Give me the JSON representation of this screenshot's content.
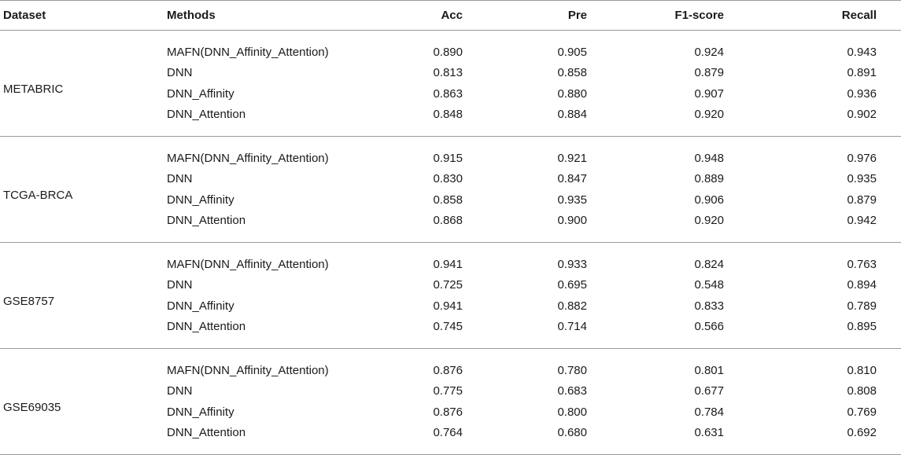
{
  "table": {
    "headers": {
      "dataset": "Dataset",
      "methods": "Methods",
      "acc": "Acc",
      "pre": "Pre",
      "f1": "F1-score",
      "recall": "Recall"
    },
    "groups": [
      {
        "dataset": "METABRIC",
        "rows": [
          {
            "method": "MAFN(DNN_Affinity_Attention)",
            "acc": "0.890",
            "pre": "0.905",
            "f1": "0.924",
            "recall": "0.943"
          },
          {
            "method": "DNN",
            "acc": "0.813",
            "pre": "0.858",
            "f1": "0.879",
            "recall": "0.891"
          },
          {
            "method": "DNN_Affinity",
            "acc": "0.863",
            "pre": "0.880",
            "f1": "0.907",
            "recall": "0.936"
          },
          {
            "method": "DNN_Attention",
            "acc": "0.848",
            "pre": "0.884",
            "f1": "0.920",
            "recall": "0.902"
          }
        ]
      },
      {
        "dataset": "TCGA-BRCA",
        "rows": [
          {
            "method": "MAFN(DNN_Affinity_Attention)",
            "acc": "0.915",
            "pre": "0.921",
            "f1": "0.948",
            "recall": "0.976"
          },
          {
            "method": "DNN",
            "acc": "0.830",
            "pre": "0.847",
            "f1": "0.889",
            "recall": "0.935"
          },
          {
            "method": "DNN_Affinity",
            "acc": "0.858",
            "pre": "0.935",
            "f1": "0.906",
            "recall": "0.879"
          },
          {
            "method": "DNN_Attention",
            "acc": "0.868",
            "pre": "0.900",
            "f1": "0.920",
            "recall": "0.942"
          }
        ]
      },
      {
        "dataset": "GSE8757",
        "rows": [
          {
            "method": "MAFN(DNN_Affinity_Attention)",
            "acc": "0.941",
            "pre": "0.933",
            "f1": "0.824",
            "recall": "0.763"
          },
          {
            "method": "DNN",
            "acc": "0.725",
            "pre": "0.695",
            "f1": "0.548",
            "recall": "0.894"
          },
          {
            "method": "DNN_Affinity",
            "acc": "0.941",
            "pre": "0.882",
            "f1": "0.833",
            "recall": "0.789"
          },
          {
            "method": "DNN_Attention",
            "acc": "0.745",
            "pre": "0.714",
            "f1": "0.566",
            "recall": "0.895"
          }
        ]
      },
      {
        "dataset": "GSE69035",
        "rows": [
          {
            "method": "MAFN(DNN_Affinity_Attention)",
            "acc": "0.876",
            "pre": "0.780",
            "f1": "0.801",
            "recall": "0.810"
          },
          {
            "method": "DNN",
            "acc": "0.775",
            "pre": "0.683",
            "f1": "0.677",
            "recall": "0.808"
          },
          {
            "method": "DNN_Affinity",
            "acc": "0.876",
            "pre": "0.800",
            "f1": "0.784",
            "recall": "0.769"
          },
          {
            "method": "DNN_Attention",
            "acc": "0.764",
            "pre": "0.680",
            "f1": "0.631",
            "recall": "0.692"
          }
        ]
      }
    ]
  }
}
